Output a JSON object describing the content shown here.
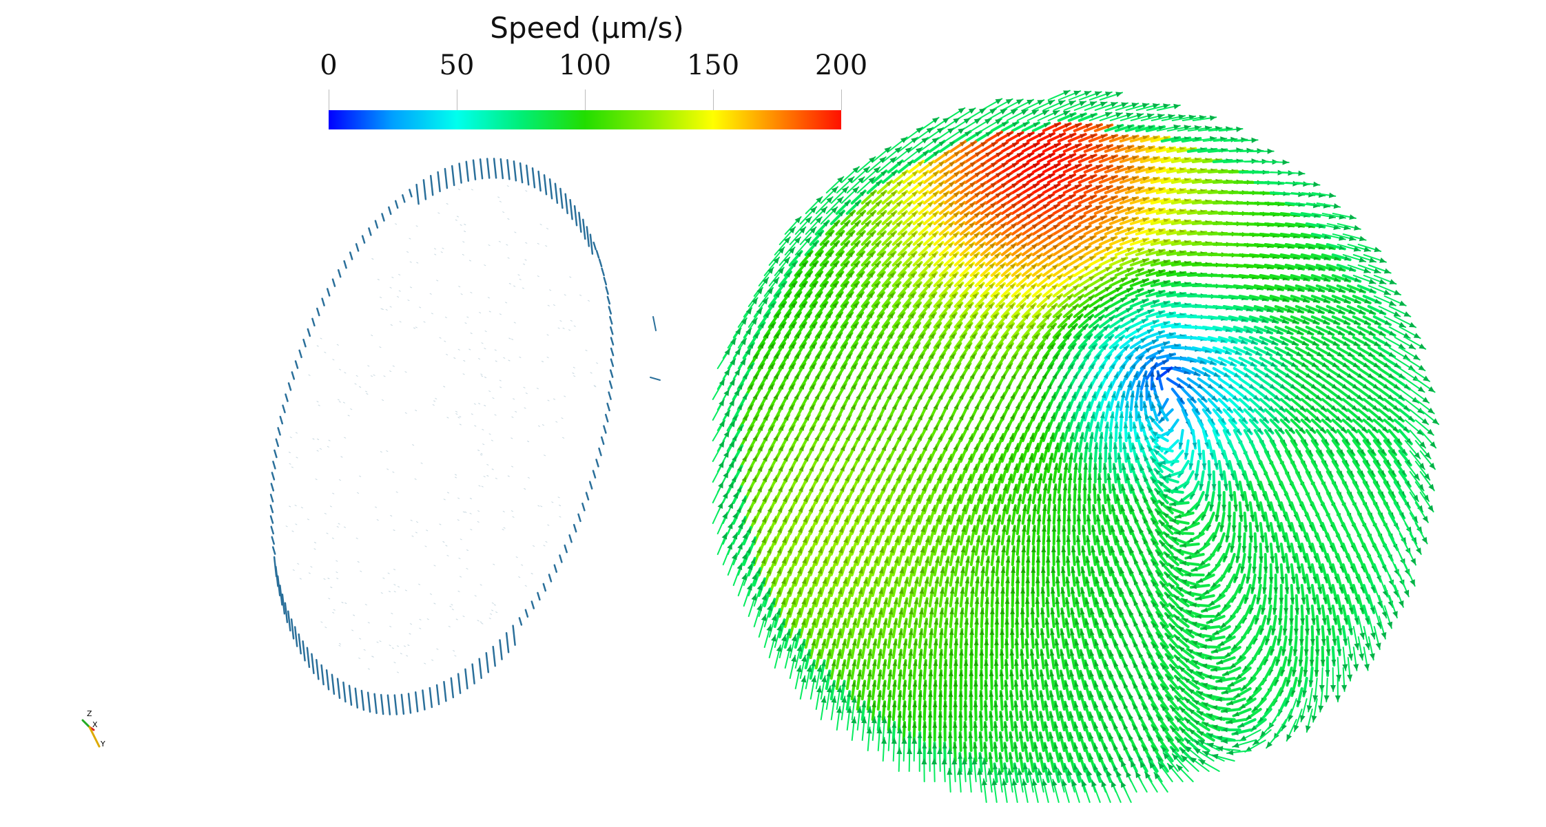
{
  "colorbar": {
    "title": "Speed (μm/s)",
    "ticks": [
      "0",
      "50",
      "100",
      "150",
      "200"
    ],
    "range": [
      0,
      200
    ],
    "stops": [
      "#0000ff",
      "#00a0ff",
      "#00ffee",
      "#00ee77",
      "#22dd00",
      "#88ee00",
      "#ffff00",
      "#ff8800",
      "#ff1100"
    ]
  },
  "orientation_axes": {
    "labels": [
      "Z",
      "X",
      "Y"
    ],
    "colors": {
      "z": "#22aa22",
      "x": "#dd2222",
      "y": "#ddaa00"
    }
  },
  "left_field": {
    "color": "#2a6f9a"
  },
  "right_field": {
    "highlight_colors": [
      "#dd3300",
      "#dd9900"
    ]
  }
}
